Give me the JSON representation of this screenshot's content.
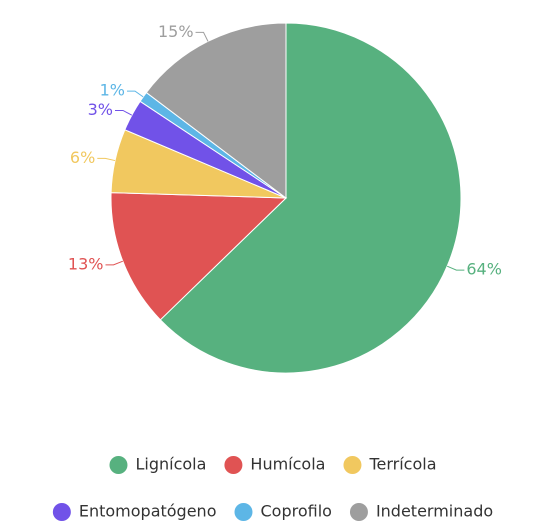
{
  "chart_data": {
    "type": "pie",
    "categories": [
      "Lignícola",
      "Humícola",
      "Terrícola",
      "Entomopatógeno",
      "Coprofilo",
      "Indeterminado"
    ],
    "values": [
      64,
      13,
      6,
      3,
      1,
      15
    ],
    "value_labels": [
      "64%",
      "13%",
      "6%",
      "3%",
      "1%",
      "15%"
    ],
    "colors": [
      "#57b17f",
      "#e05353",
      "#f1c85f",
      "#7152e8",
      "#5db6e6",
      "#9e9e9e"
    ],
    "legend": "bottom"
  }
}
